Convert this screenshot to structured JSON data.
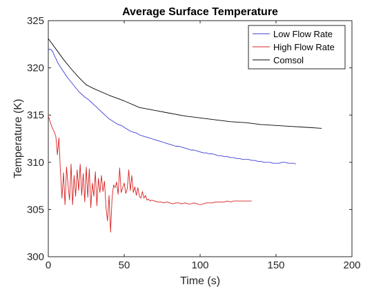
{
  "chart_data": {
    "type": "line",
    "title": "Average Surface Temperature",
    "xlabel": "Time (s)",
    "ylabel": "Temperature (K)",
    "xlim": [
      0,
      200
    ],
    "ylim": [
      300,
      325
    ],
    "xticks": [
      0,
      50,
      100,
      150,
      200
    ],
    "yticks": [
      300,
      305,
      310,
      315,
      320,
      325
    ],
    "grid": false,
    "legend_position": "top-right",
    "series": [
      {
        "name": "Low Flow Rate",
        "color": "#3b3bd6",
        "points": [
          [
            0,
            321.9
          ],
          [
            1,
            322.0
          ],
          [
            2,
            321.9
          ],
          [
            3,
            321.7
          ],
          [
            4,
            321.3
          ],
          [
            5,
            321.0
          ],
          [
            6,
            320.6
          ],
          [
            8,
            320.1
          ],
          [
            10,
            319.6
          ],
          [
            12,
            319.1
          ],
          [
            14,
            318.7
          ],
          [
            16,
            318.3
          ],
          [
            18,
            317.9
          ],
          [
            20,
            317.5
          ],
          [
            22,
            317.2
          ],
          [
            24,
            316.9
          ],
          [
            26,
            316.7
          ],
          [
            28,
            316.4
          ],
          [
            30,
            316.1
          ],
          [
            32,
            315.8
          ],
          [
            34,
            315.5
          ],
          [
            36,
            315.2
          ],
          [
            38,
            314.9
          ],
          [
            40,
            314.6
          ],
          [
            42,
            314.4
          ],
          [
            44,
            314.2
          ],
          [
            46,
            314.0
          ],
          [
            48,
            313.9
          ],
          [
            50,
            313.7
          ],
          [
            52,
            313.5
          ],
          [
            54,
            313.3
          ],
          [
            56,
            313.2
          ],
          [
            58,
            313.1
          ],
          [
            60,
            312.9
          ],
          [
            62,
            312.8
          ],
          [
            64,
            312.7
          ],
          [
            66,
            312.6
          ],
          [
            68,
            312.5
          ],
          [
            70,
            312.4
          ],
          [
            72,
            312.3
          ],
          [
            74,
            312.2
          ],
          [
            76,
            312.1
          ],
          [
            78,
            312.0
          ],
          [
            80,
            311.9
          ],
          [
            82,
            311.8
          ],
          [
            84,
            311.7
          ],
          [
            86,
            311.7
          ],
          [
            88,
            311.6
          ],
          [
            90,
            311.5
          ],
          [
            92,
            311.4
          ],
          [
            94,
            311.3
          ],
          [
            96,
            311.3
          ],
          [
            98,
            311.2
          ],
          [
            100,
            311.1
          ],
          [
            102,
            311.0
          ],
          [
            104,
            311.0
          ],
          [
            106,
            310.9
          ],
          [
            108,
            310.9
          ],
          [
            110,
            310.8
          ],
          [
            112,
            310.7
          ],
          [
            114,
            310.7
          ],
          [
            116,
            310.6
          ],
          [
            118,
            310.6
          ],
          [
            120,
            310.5
          ],
          [
            122,
            310.5
          ],
          [
            124,
            310.4
          ],
          [
            126,
            310.4
          ],
          [
            128,
            310.3
          ],
          [
            130,
            310.3
          ],
          [
            132,
            310.3
          ],
          [
            134,
            310.2
          ],
          [
            136,
            310.2
          ],
          [
            138,
            310.1
          ],
          [
            140,
            310.1
          ],
          [
            142,
            310.0
          ],
          [
            144,
            310.0
          ],
          [
            146,
            310.0
          ],
          [
            148,
            309.9
          ],
          [
            150,
            309.9
          ],
          [
            152,
            309.9
          ],
          [
            154,
            310.0
          ],
          [
            156,
            310.0
          ],
          [
            158,
            309.9
          ],
          [
            160,
            309.9
          ],
          [
            162,
            309.9
          ],
          [
            163,
            309.8
          ]
        ]
      },
      {
        "name": "High Flow Rate",
        "color": "#d62020",
        "points": [
          [
            0,
            314.9
          ],
          [
            1,
            314.4
          ],
          [
            2,
            313.9
          ],
          [
            3,
            313.5
          ],
          [
            4,
            313.2
          ],
          [
            5,
            312.7
          ],
          [
            6,
            310.8
          ],
          [
            7,
            312.6
          ],
          [
            8,
            309.0
          ],
          [
            9,
            306.2
          ],
          [
            10,
            308.9
          ],
          [
            11,
            305.5
          ],
          [
            12,
            309.5
          ],
          [
            13,
            307.6
          ],
          [
            14,
            306.0
          ],
          [
            15,
            309.8
          ],
          [
            16,
            305.5
          ],
          [
            17,
            308.6
          ],
          [
            18,
            306.4
          ],
          [
            19,
            309.2
          ],
          [
            20,
            307.0
          ],
          [
            21,
            309.8
          ],
          [
            22,
            306.5
          ],
          [
            23,
            308.8
          ],
          [
            24,
            305.8
          ],
          [
            25,
            309.5
          ],
          [
            26,
            306.3
          ],
          [
            27,
            309.3
          ],
          [
            28,
            305.2
          ],
          [
            29,
            307.8
          ],
          [
            30,
            306.4
          ],
          [
            31,
            309.0
          ],
          [
            32,
            305.4
          ],
          [
            33,
            308.3
          ],
          [
            34,
            306.8
          ],
          [
            35,
            308.6
          ],
          [
            36,
            306.9
          ],
          [
            37,
            308.0
          ],
          [
            38,
            305.2
          ],
          [
            39,
            303.8
          ],
          [
            40,
            306.5
          ],
          [
            41,
            302.6
          ],
          [
            42,
            306.2
          ],
          [
            43,
            307.6
          ],
          [
            44,
            307.3
          ],
          [
            45,
            307.9
          ],
          [
            46,
            306.6
          ],
          [
            47,
            309.4
          ],
          [
            48,
            306.8
          ],
          [
            49,
            307.3
          ],
          [
            50,
            307.8
          ],
          [
            51,
            306.7
          ],
          [
            52,
            307.2
          ],
          [
            53,
            309.2
          ],
          [
            54,
            307.0
          ],
          [
            55,
            308.6
          ],
          [
            56,
            306.8
          ],
          [
            57,
            307.4
          ],
          [
            58,
            306.5
          ],
          [
            59,
            307.3
          ],
          [
            60,
            306.4
          ],
          [
            61,
            306.2
          ],
          [
            62,
            306.9
          ],
          [
            63,
            306.2
          ],
          [
            64,
            306.5
          ],
          [
            65,
            306.0
          ],
          [
            66,
            306.1
          ],
          [
            67,
            305.9
          ],
          [
            68,
            306.0
          ],
          [
            70,
            305.9
          ],
          [
            72,
            305.8
          ],
          [
            74,
            305.8
          ],
          [
            76,
            305.7
          ],
          [
            78,
            305.8
          ],
          [
            80,
            305.7
          ],
          [
            82,
            305.6
          ],
          [
            84,
            305.7
          ],
          [
            86,
            305.7
          ],
          [
            88,
            305.6
          ],
          [
            90,
            305.7
          ],
          [
            92,
            305.6
          ],
          [
            94,
            305.6
          ],
          [
            96,
            305.7
          ],
          [
            98,
            305.6
          ],
          [
            100,
            305.5
          ],
          [
            102,
            305.6
          ],
          [
            104,
            305.7
          ],
          [
            106,
            305.7
          ],
          [
            108,
            305.7
          ],
          [
            110,
            305.8
          ],
          [
            112,
            305.8
          ],
          [
            114,
            305.8
          ],
          [
            116,
            305.8
          ],
          [
            118,
            305.9
          ],
          [
            120,
            305.8
          ],
          [
            122,
            305.9
          ],
          [
            124,
            305.9
          ],
          [
            126,
            305.9
          ],
          [
            128,
            305.9
          ],
          [
            130,
            305.9
          ],
          [
            132,
            305.9
          ],
          [
            134,
            305.9
          ]
        ]
      },
      {
        "name": "Comsol",
        "color": "#000000",
        "points": [
          [
            0,
            323.1
          ],
          [
            5,
            322.0
          ],
          [
            10,
            320.9
          ],
          [
            15,
            319.9
          ],
          [
            20,
            319.0
          ],
          [
            25,
            318.2
          ],
          [
            30,
            317.8
          ],
          [
            40,
            317.1
          ],
          [
            50,
            316.5
          ],
          [
            60,
            315.8
          ],
          [
            70,
            315.5
          ],
          [
            80,
            315.2
          ],
          [
            90,
            314.9
          ],
          [
            100,
            314.7
          ],
          [
            110,
            314.5
          ],
          [
            120,
            314.3
          ],
          [
            130,
            314.2
          ],
          [
            140,
            314.0
          ],
          [
            150,
            313.9
          ],
          [
            160,
            313.8
          ],
          [
            170,
            313.7
          ],
          [
            180,
            313.6
          ]
        ]
      }
    ]
  }
}
